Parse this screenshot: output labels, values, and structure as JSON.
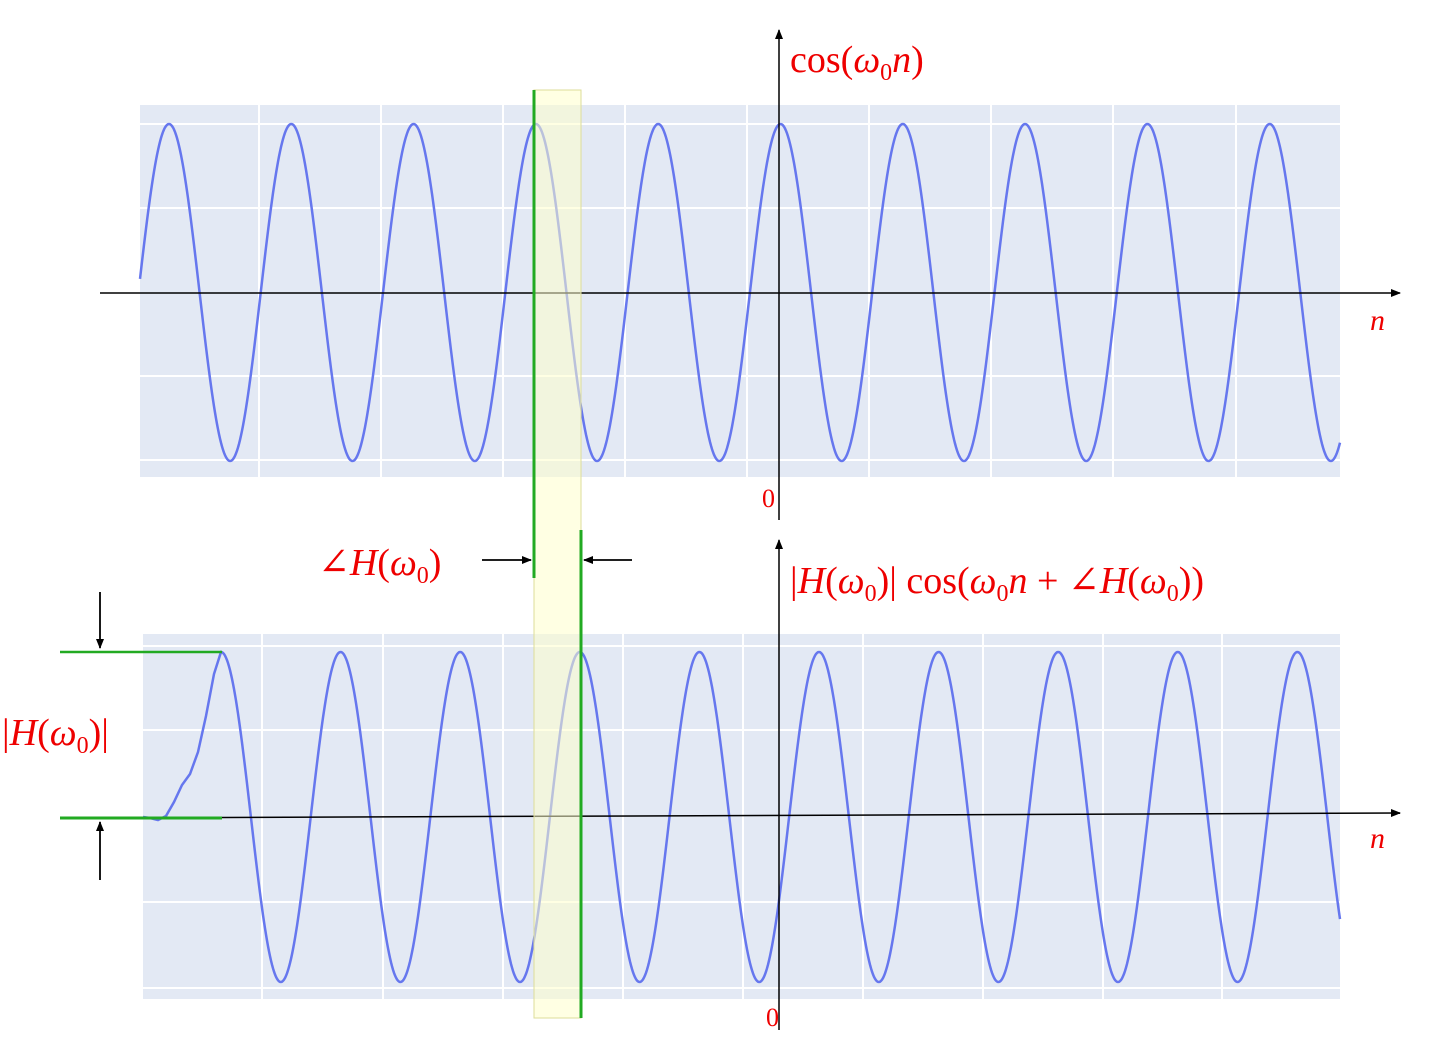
{
  "top_panel": {
    "label": "cos(ω0n)",
    "label_parts": {
      "fn": "cos(",
      "omega": "ω",
      "sub": "0",
      "n": "n",
      "close": ")"
    },
    "x_axis_label": "n",
    "origin_label": "0",
    "signal": {
      "cycles": 10,
      "phase_offset": 0
    }
  },
  "bottom_panel": {
    "label": "|H(ω0)| cos(ω0n + ∠H(ω0))",
    "x_axis_label": "n",
    "origin_label": "0",
    "signal": {
      "cycles": 10,
      "phase_shift_fraction": 0.18,
      "transient_start": true
    }
  },
  "annotations": {
    "phase_label": "∠H(ω0)",
    "magnitude_label": "|H(ω0)|"
  },
  "colors": {
    "signal": "#6677ee",
    "panel_background": "#e3e9f4",
    "grid": "#ffffff",
    "marker": "#22aa22",
    "highlight": "#ffffcc",
    "label": "#ee0000",
    "axis": "#000000"
  }
}
